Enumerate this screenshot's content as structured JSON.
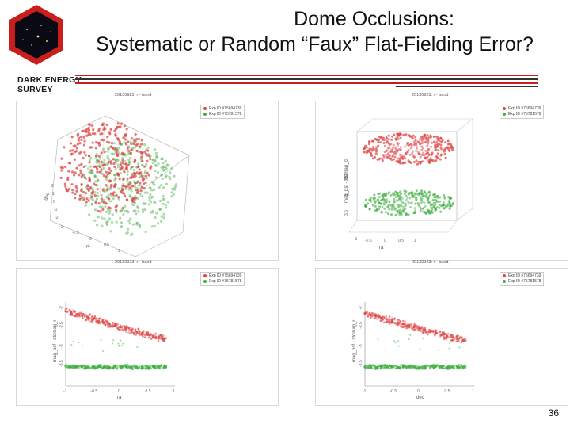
{
  "header": {
    "title_line1": "Dome Occlusions:",
    "title_line2": "Systematic or Random “Faux” Flat-Fielding Error?",
    "brand_line1": "DARK ENERGY",
    "brand_line2": "SURVEY",
    "page_number": "36"
  },
  "colors": {
    "red_series": "#e04848",
    "green_series": "#44b044",
    "rule_red": "#c81e1e",
    "rule_dark": "#333333"
  },
  "chart_data": [
    {
      "type": "scatter",
      "view": "3d",
      "title": "20130923: r - band",
      "series": [
        {
          "name": "Exp ID #75694739",
          "color": "#e04848"
        },
        {
          "name": "Exp ID #75781578",
          "color": "#44b044"
        }
      ],
      "xlabel": "ra",
      "ylabel": "dec",
      "x_ticks": [
        "-1",
        "-0.5",
        "0",
        "0.5",
        "1"
      ],
      "y_ticks": [
        "2",
        "1",
        "0",
        "-1",
        "-2"
      ]
    },
    {
      "type": "scatter",
      "view": "3d",
      "title": "20130923: r - band",
      "series": [
        {
          "name": "Exp ID #75694739",
          "color": "#e04848"
        },
        {
          "name": "Exp ID #75781578",
          "color": "#44b044"
        }
      ],
      "xlabel": "ra",
      "zlabel": "mag_psf - stdmag_r",
      "x_ticks": [
        "-1",
        "-0.5",
        "0",
        "0.5",
        "1"
      ],
      "z_ticks": [
        "2",
        "2.5",
        "3",
        "3.5"
      ]
    },
    {
      "type": "scatter",
      "title": "20130923: r - band",
      "series": [
        {
          "name": "Exp ID #75694739",
          "color": "#e04848",
          "points": [
            [
              -1.0,
              -2.04
            ],
            [
              -0.9,
              -2.08
            ],
            [
              -0.8,
              -2.12
            ],
            [
              -0.7,
              -2.16
            ],
            [
              -0.6,
              -2.2
            ],
            [
              -0.5,
              -2.25
            ],
            [
              -0.4,
              -2.3
            ],
            [
              -0.3,
              -2.34
            ],
            [
              -0.2,
              -2.38
            ],
            [
              -0.1,
              -2.42
            ],
            [
              0.0,
              -2.46
            ],
            [
              0.1,
              -2.5
            ],
            [
              0.2,
              -2.54
            ],
            [
              0.3,
              -2.58
            ],
            [
              0.4,
              -2.62
            ],
            [
              0.5,
              -2.66
            ],
            [
              0.6,
              -2.7
            ],
            [
              0.7,
              -2.73
            ],
            [
              0.8,
              -2.76
            ]
          ]
        },
        {
          "name": "Exp ID #75781578",
          "color": "#44b044",
          "points": [
            [
              -1.0,
              -3.48
            ],
            [
              -0.9,
              -3.5
            ],
            [
              -0.8,
              -3.49
            ],
            [
              -0.7,
              -3.5
            ],
            [
              -0.6,
              -3.51
            ],
            [
              -0.5,
              -3.5
            ],
            [
              -0.4,
              -3.49
            ],
            [
              -0.3,
              -3.5
            ],
            [
              -0.2,
              -3.51
            ],
            [
              -0.1,
              -3.5
            ],
            [
              0.0,
              -3.5
            ],
            [
              0.1,
              -3.49
            ],
            [
              0.2,
              -3.51
            ],
            [
              0.3,
              -3.5
            ],
            [
              0.4,
              -3.5
            ],
            [
              0.5,
              -3.51
            ],
            [
              0.6,
              -3.49
            ],
            [
              0.7,
              -3.5
            ],
            [
              0.8,
              -3.5
            ]
          ]
        }
      ],
      "xlabel": "ra",
      "ylabel": "mag_psf - stdmag_r",
      "xlim": [
        -1,
        1
      ],
      "ylim": [
        -4,
        -1.8
      ],
      "x_ticks": [
        "-1",
        "-0.5",
        "0",
        "0.5",
        "1"
      ],
      "y_ticks": [
        "-2",
        "-2.5",
        "-3",
        "-3.5"
      ]
    },
    {
      "type": "scatter",
      "title": "20130923: r - band",
      "series": [
        {
          "name": "Exp ID #75694739",
          "color": "#e04848",
          "points": [
            [
              -1.0,
              -2.1
            ],
            [
              -0.9,
              -2.14
            ],
            [
              -0.8,
              -2.18
            ],
            [
              -0.7,
              -2.22
            ],
            [
              -0.6,
              -2.26
            ],
            [
              -0.5,
              -2.3
            ],
            [
              -0.4,
              -2.34
            ],
            [
              -0.3,
              -2.38
            ],
            [
              -0.2,
              -2.42
            ],
            [
              -0.1,
              -2.46
            ],
            [
              0.0,
              -2.5
            ],
            [
              0.1,
              -2.54
            ],
            [
              0.2,
              -2.58
            ],
            [
              0.3,
              -2.62
            ],
            [
              0.4,
              -2.66
            ],
            [
              0.5,
              -2.7
            ],
            [
              0.6,
              -2.73
            ],
            [
              0.7,
              -2.76
            ],
            [
              0.8,
              -2.8
            ]
          ]
        },
        {
          "name": "Exp ID #75781578",
          "color": "#44b044",
          "points": [
            [
              -1.0,
              -3.5
            ],
            [
              -0.9,
              -3.49
            ],
            [
              -0.8,
              -3.51
            ],
            [
              -0.7,
              -3.5
            ],
            [
              -0.6,
              -3.49
            ],
            [
              -0.5,
              -3.5
            ],
            [
              -0.4,
              -3.51
            ],
            [
              -0.3,
              -3.5
            ],
            [
              -0.2,
              -3.49
            ],
            [
              -0.1,
              -3.5
            ],
            [
              0.0,
              -3.51
            ],
            [
              0.1,
              -3.5
            ],
            [
              0.2,
              -3.5
            ],
            [
              0.3,
              -3.49
            ],
            [
              0.4,
              -3.5
            ],
            [
              0.5,
              -3.51
            ],
            [
              0.6,
              -3.5
            ],
            [
              0.7,
              -3.49
            ],
            [
              0.8,
              -3.5
            ]
          ]
        }
      ],
      "xlabel": "dec",
      "ylabel": "mag_psf - stdmag_r",
      "xlim": [
        -1,
        1
      ],
      "ylim": [
        -4,
        -1.8
      ],
      "x_ticks": [
        "-1",
        "-0.5",
        "0",
        "0.5",
        "1"
      ],
      "y_ticks": [
        "-2",
        "-2.5",
        "-3",
        "-3.5"
      ]
    }
  ]
}
